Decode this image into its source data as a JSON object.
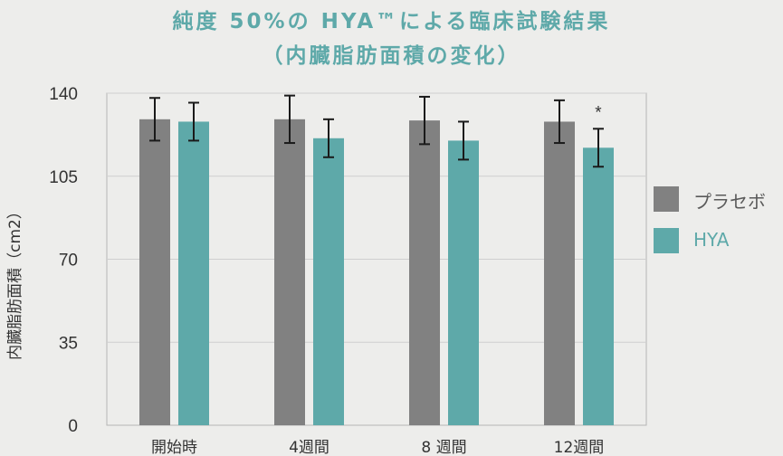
{
  "title_line1": "純度 50%の HYA™による臨床試験結果",
  "title_line2": "（内臓脂肪面積の変化）",
  "colors": {
    "placebo": "#818181",
    "hya": "#5ea9a9",
    "grid": "#cfcfcf",
    "axis": "#b5b5b5",
    "errbar": "#1a1a1a"
  },
  "chart_data": {
    "type": "bar",
    "ylabel": "内臓脂肪面積（cm2）",
    "ylim": [
      0,
      140
    ],
    "yticks": [
      "0",
      "35",
      "70",
      "105",
      "140"
    ],
    "grid": true,
    "legend_position": "right",
    "categories": [
      "開始時",
      "4週間",
      "8 週間",
      "12週間"
    ],
    "series": [
      {
        "name": "プラセボ",
        "values": [
          129,
          129,
          128.5,
          128
        ],
        "errors": [
          9,
          10,
          10,
          9
        ]
      },
      {
        "name": "HYA",
        "values": [
          128,
          121,
          120,
          117
        ],
        "errors": [
          8,
          8,
          8,
          8
        ]
      }
    ],
    "annotations": [
      {
        "category": "12週間",
        "series": "HYA",
        "text": "*"
      }
    ]
  }
}
